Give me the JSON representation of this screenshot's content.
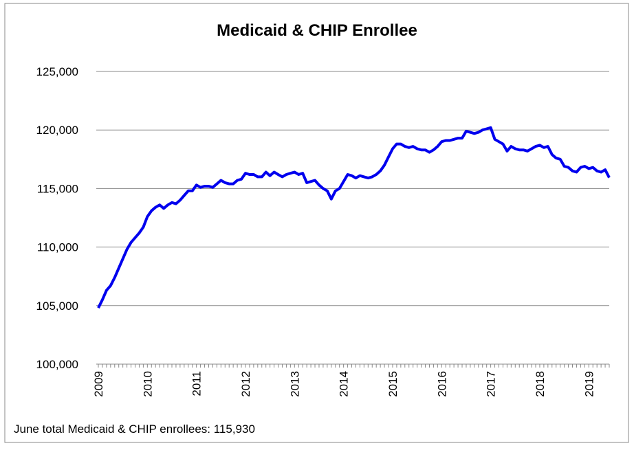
{
  "chart_data": {
    "type": "line",
    "title": "Medicaid & CHIP Enrollee",
    "note": "June total Medicaid & CHIP enrollees: 115,930",
    "categories": [
      "2009",
      null,
      null,
      null,
      null,
      null,
      null,
      null,
      null,
      null,
      null,
      null,
      "2010",
      null,
      null,
      null,
      null,
      null,
      null,
      null,
      null,
      null,
      null,
      null,
      "2011",
      null,
      null,
      null,
      null,
      null,
      null,
      null,
      null,
      null,
      null,
      null,
      "2012",
      null,
      null,
      null,
      null,
      null,
      null,
      null,
      null,
      null,
      null,
      null,
      "2013",
      null,
      null,
      null,
      null,
      null,
      null,
      null,
      null,
      null,
      null,
      null,
      "2014",
      null,
      null,
      null,
      null,
      null,
      null,
      null,
      null,
      null,
      null,
      null,
      "2015",
      null,
      null,
      null,
      null,
      null,
      null,
      null,
      null,
      null,
      null,
      null,
      "2016",
      null,
      null,
      null,
      null,
      null,
      null,
      null,
      null,
      null,
      null,
      null,
      "2017",
      null,
      null,
      null,
      null,
      null,
      null,
      null,
      null,
      null,
      null,
      null,
      "2018",
      null,
      null,
      null,
      null,
      null,
      null,
      null,
      null,
      null,
      null,
      null,
      "2019",
      null,
      null,
      null,
      null,
      null
    ],
    "series": [
      {
        "name": "Medicaid & CHIP Enrollee",
        "color": "#0000ee",
        "values": [
          104800,
          105500,
          106300,
          106700,
          107400,
          108200,
          109000,
          109800,
          110400,
          110800,
          111200,
          111700,
          112600,
          113100,
          113400,
          113600,
          113300,
          113600,
          113800,
          113700,
          114000,
          114400,
          114800,
          114800,
          115300,
          115100,
          115200,
          115200,
          115100,
          115400,
          115700,
          115500,
          115400,
          115400,
          115700,
          115800,
          116300,
          116200,
          116200,
          116000,
          116000,
          116400,
          116100,
          116400,
          116200,
          116000,
          116200,
          116300,
          116400,
          116200,
          116300,
          115500,
          115600,
          115700,
          115300,
          115000,
          114800,
          114100,
          114800,
          115000,
          115600,
          116200,
          116100,
          115900,
          116100,
          116000,
          115900,
          116000,
          116200,
          116500,
          117000,
          117700,
          118400,
          118800,
          118800,
          118600,
          118500,
          118600,
          118400,
          118300,
          118300,
          118100,
          118300,
          118600,
          119000,
          119100,
          119100,
          119200,
          119300,
          119300,
          119900,
          119800,
          119700,
          119800,
          120000,
          120100,
          120200,
          119200,
          119000,
          118800,
          118200,
          118600,
          118400,
          118300,
          118300,
          118200,
          118400,
          118600,
          118700,
          118500,
          118600,
          117900,
          117600,
          117500,
          116900,
          116800,
          116500,
          116400,
          116800,
          116900,
          116700,
          116800,
          116500,
          116400,
          116600,
          115930
        ]
      }
    ],
    "ylim": [
      100000,
      125000
    ],
    "yticks": [
      {
        "value": 100000,
        "label": "100,000"
      },
      {
        "value": 105000,
        "label": "105,000"
      },
      {
        "value": 110000,
        "label": "110,000"
      },
      {
        "value": 115000,
        "label": "115,000"
      },
      {
        "value": 120000,
        "label": "120,000"
      },
      {
        "value": 125000,
        "label": "125,000"
      }
    ],
    "grid": true
  }
}
